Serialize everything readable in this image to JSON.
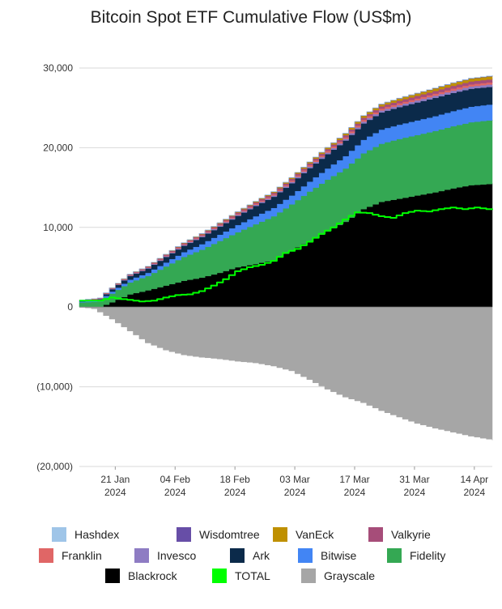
{
  "chart_data": {
    "type": "area",
    "title": "Bitcoin Spot ETF Cumulative Flow (US$m)",
    "xlabel": "",
    "ylabel": "",
    "ylim": [
      -20000,
      30000
    ],
    "y_ticks": [
      {
        "value": 30000,
        "label": "30,000"
      },
      {
        "value": 20000,
        "label": "20,000"
      },
      {
        "value": 10000,
        "label": "10,000"
      },
      {
        "value": 0,
        "label": "0"
      },
      {
        "value": -10000,
        "label": "(10,000)"
      },
      {
        "value": -20000,
        "label": "(20,000)"
      }
    ],
    "x_ticks": [
      {
        "index": 6,
        "line1": "21 Jan",
        "line2": "2024"
      },
      {
        "index": 16,
        "line1": "04 Feb",
        "line2": "2024"
      },
      {
        "index": 26,
        "line1": "18 Feb",
        "line2": "2024"
      },
      {
        "index": 36,
        "line1": "03 Mar",
        "line2": "2024"
      },
      {
        "index": 46,
        "line1": "17 Mar",
        "line2": "2024"
      },
      {
        "index": 56,
        "line1": "31 Mar",
        "line2": "2024"
      },
      {
        "index": 66,
        "line1": "14 Apr",
        "line2": "2024"
      }
    ],
    "x_count": 70,
    "grid": "horizontal",
    "legend_position": "bottom",
    "stack_order": [
      "Blackrock",
      "Fidelity",
      "Bitwise",
      "Ark",
      "Invesco",
      "Franklin",
      "Valkyrie",
      "VanEck",
      "Wisdomtree",
      "Hashdex"
    ],
    "series": [
      {
        "name": "Blackrock",
        "color": "#000000",
        "kind": "stack-positive",
        "anchors": [
          [
            0,
            0
          ],
          [
            3,
            0
          ],
          [
            5,
            600
          ],
          [
            8,
            1600
          ],
          [
            11,
            2100
          ],
          [
            14,
            2700
          ],
          [
            17,
            3300
          ],
          [
            20,
            3700
          ],
          [
            23,
            4300
          ],
          [
            26,
            5000
          ],
          [
            29,
            5400
          ],
          [
            32,
            5900
          ],
          [
            35,
            7100
          ],
          [
            38,
            8300
          ],
          [
            41,
            9500
          ],
          [
            44,
            10700
          ],
          [
            47,
            12300
          ],
          [
            50,
            13200
          ],
          [
            53,
            13600
          ],
          [
            56,
            14000
          ],
          [
            59,
            14400
          ],
          [
            62,
            14900
          ],
          [
            65,
            15300
          ],
          [
            69,
            15500
          ]
        ]
      },
      {
        "name": "Fidelity",
        "color": "#34a853",
        "kind": "stack-positive",
        "anchors": [
          [
            0,
            600
          ],
          [
            3,
            700
          ],
          [
            5,
            1100
          ],
          [
            8,
            1500
          ],
          [
            11,
            1800
          ],
          [
            14,
            2400
          ],
          [
            17,
            3000
          ],
          [
            20,
            3500
          ],
          [
            23,
            4000
          ],
          [
            26,
            4400
          ],
          [
            29,
            5000
          ],
          [
            32,
            5500
          ],
          [
            35,
            5800
          ],
          [
            38,
            6200
          ],
          [
            41,
            6500
          ],
          [
            44,
            6700
          ],
          [
            47,
            7000
          ],
          [
            50,
            7300
          ],
          [
            53,
            7500
          ],
          [
            56,
            7600
          ],
          [
            59,
            7700
          ],
          [
            62,
            7800
          ],
          [
            65,
            7900
          ],
          [
            69,
            8000
          ]
        ]
      },
      {
        "name": "Bitwise",
        "color": "#4285f4",
        "kind": "stack-positive",
        "anchors": [
          [
            0,
            100
          ],
          [
            3,
            150
          ],
          [
            5,
            250
          ],
          [
            8,
            350
          ],
          [
            11,
            400
          ],
          [
            14,
            500
          ],
          [
            17,
            600
          ],
          [
            20,
            700
          ],
          [
            23,
            800
          ],
          [
            26,
            900
          ],
          [
            29,
            1000
          ],
          [
            32,
            1050
          ],
          [
            35,
            1100
          ],
          [
            38,
            1250
          ],
          [
            41,
            1400
          ],
          [
            44,
            1550
          ],
          [
            47,
            1700
          ],
          [
            50,
            1780
          ],
          [
            53,
            1800
          ],
          [
            56,
            1830
          ],
          [
            59,
            1860
          ],
          [
            62,
            1900
          ],
          [
            65,
            1950
          ],
          [
            69,
            2000
          ]
        ]
      },
      {
        "name": "Ark",
        "color": "#0b2a4a",
        "kind": "stack-positive",
        "anchors": [
          [
            0,
            100
          ],
          [
            3,
            150
          ],
          [
            5,
            300
          ],
          [
            8,
            450
          ],
          [
            11,
            550
          ],
          [
            14,
            700
          ],
          [
            17,
            800
          ],
          [
            20,
            900
          ],
          [
            23,
            1000
          ],
          [
            26,
            1150
          ],
          [
            29,
            1300
          ],
          [
            32,
            1400
          ],
          [
            35,
            1550
          ],
          [
            38,
            1700
          ],
          [
            41,
            1800
          ],
          [
            44,
            1950
          ],
          [
            47,
            2050
          ],
          [
            50,
            2150
          ],
          [
            53,
            2200
          ],
          [
            56,
            2250
          ],
          [
            59,
            2300
          ],
          [
            62,
            2280
          ],
          [
            65,
            2250
          ],
          [
            69,
            2200
          ]
        ]
      },
      {
        "name": "Invesco",
        "color": "#8e7cc3",
        "kind": "stack-positive",
        "anchors": [
          [
            0,
            30
          ],
          [
            10,
            80
          ],
          [
            20,
            120
          ],
          [
            30,
            150
          ],
          [
            40,
            200
          ],
          [
            50,
            250
          ],
          [
            60,
            280
          ],
          [
            69,
            300
          ]
        ]
      },
      {
        "name": "Franklin",
        "color": "#e06666",
        "kind": "stack-positive",
        "anchors": [
          [
            0,
            20
          ],
          [
            10,
            60
          ],
          [
            20,
            100
          ],
          [
            30,
            140
          ],
          [
            40,
            180
          ],
          [
            50,
            220
          ],
          [
            60,
            250
          ],
          [
            69,
            270
          ]
        ]
      },
      {
        "name": "Valkyrie",
        "color": "#a64d79",
        "kind": "stack-positive",
        "anchors": [
          [
            0,
            30
          ],
          [
            10,
            80
          ],
          [
            20,
            130
          ],
          [
            30,
            180
          ],
          [
            40,
            240
          ],
          [
            50,
            300
          ],
          [
            60,
            350
          ],
          [
            69,
            380
          ]
        ]
      },
      {
        "name": "VanEck",
        "color": "#bf9000",
        "kind": "stack-positive",
        "anchors": [
          [
            0,
            10
          ],
          [
            10,
            30
          ],
          [
            20,
            60
          ],
          [
            30,
            100
          ],
          [
            40,
            170
          ],
          [
            50,
            250
          ],
          [
            60,
            330
          ],
          [
            69,
            380
          ]
        ]
      },
      {
        "name": "Wisdomtree",
        "color": "#674ea7",
        "kind": "stack-positive",
        "anchors": [
          [
            0,
            5
          ],
          [
            20,
            15
          ],
          [
            40,
            25
          ],
          [
            60,
            35
          ],
          [
            69,
            40
          ]
        ]
      },
      {
        "name": "Hashdex",
        "color": "#9fc5e8",
        "kind": "stack-positive",
        "anchors": [
          [
            0,
            5
          ],
          [
            20,
            10
          ],
          [
            40,
            15
          ],
          [
            60,
            18
          ],
          [
            69,
            20
          ]
        ]
      },
      {
        "name": "Grayscale",
        "color": "#a6a6a6",
        "kind": "negative",
        "anchors": [
          [
            0,
            0
          ],
          [
            2,
            -200
          ],
          [
            5,
            -1500
          ],
          [
            8,
            -3000
          ],
          [
            11,
            -4500
          ],
          [
            14,
            -5400
          ],
          [
            17,
            -6000
          ],
          [
            20,
            -6300
          ],
          [
            23,
            -6500
          ],
          [
            26,
            -6800
          ],
          [
            29,
            -7000
          ],
          [
            32,
            -7400
          ],
          [
            35,
            -8000
          ],
          [
            38,
            -9100
          ],
          [
            41,
            -10300
          ],
          [
            44,
            -11300
          ],
          [
            47,
            -12000
          ],
          [
            50,
            -13000
          ],
          [
            53,
            -13800
          ],
          [
            56,
            -14600
          ],
          [
            59,
            -15200
          ],
          [
            62,
            -15700
          ],
          [
            65,
            -16200
          ],
          [
            69,
            -16700
          ]
        ]
      },
      {
        "name": "TOTAL",
        "color": "#00ff00",
        "kind": "line",
        "anchors": [
          [
            0,
            800
          ],
          [
            3,
            800
          ],
          [
            5,
            1200
          ],
          [
            8,
            900
          ],
          [
            10,
            700
          ],
          [
            12,
            800
          ],
          [
            14,
            1200
          ],
          [
            16,
            1500
          ],
          [
            18,
            1600
          ],
          [
            20,
            2000
          ],
          [
            22,
            2700
          ],
          [
            24,
            3500
          ],
          [
            26,
            4500
          ],
          [
            28,
            5000
          ],
          [
            30,
            5300
          ],
          [
            32,
            5800
          ],
          [
            34,
            6800
          ],
          [
            36,
            7300
          ],
          [
            38,
            8200
          ],
          [
            40,
            9200
          ],
          [
            42,
            10000
          ],
          [
            44,
            11000
          ],
          [
            46,
            11900
          ],
          [
            48,
            11800
          ],
          [
            50,
            11400
          ],
          [
            52,
            11200
          ],
          [
            54,
            11800
          ],
          [
            56,
            12100
          ],
          [
            58,
            12000
          ],
          [
            60,
            12300
          ],
          [
            62,
            12500
          ],
          [
            64,
            12300
          ],
          [
            66,
            12500
          ],
          [
            69,
            12200
          ]
        ]
      }
    ],
    "legend": [
      {
        "name": "Hashdex",
        "color": "#9fc5e8"
      },
      {
        "name": "Wisdomtree",
        "color": "#674ea7"
      },
      {
        "name": "VanEck",
        "color": "#bf9000"
      },
      {
        "name": "Valkyrie",
        "color": "#a64d79"
      },
      {
        "name": "Franklin",
        "color": "#e06666"
      },
      {
        "name": "Invesco",
        "color": "#8e7cc3"
      },
      {
        "name": "Ark",
        "color": "#0b2a4a"
      },
      {
        "name": "Bitwise",
        "color": "#4285f4"
      },
      {
        "name": "Fidelity",
        "color": "#34a853"
      },
      {
        "name": "Blackrock",
        "color": "#000000"
      },
      {
        "name": "TOTAL",
        "color": "#00ff00"
      },
      {
        "name": "Grayscale",
        "color": "#a6a6a6"
      }
    ]
  }
}
